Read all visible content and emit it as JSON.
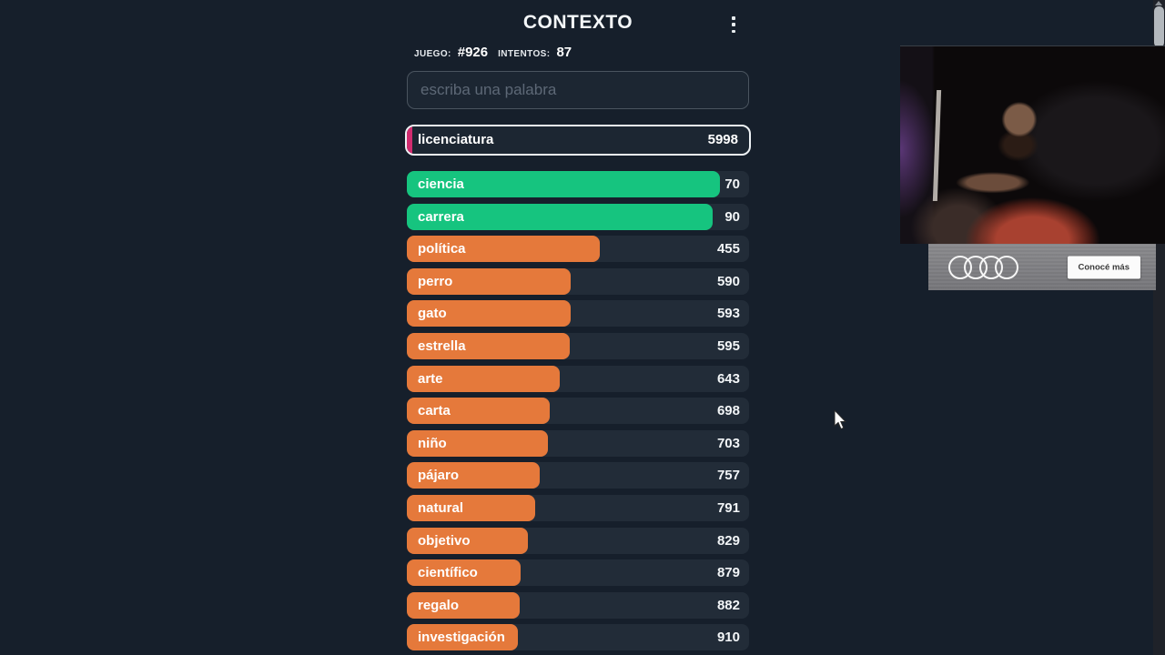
{
  "app": {
    "title": "CONTEXTO"
  },
  "header": {
    "game_label": "JUEGO:",
    "game_value": "#926",
    "attempts_label": "INTENTOS:",
    "attempts_value": "87"
  },
  "search": {
    "placeholder": "escriba una palabra",
    "value": ""
  },
  "colors": {
    "green": "#16c47f",
    "orange": "#e5793b",
    "pink": "#d12c6f",
    "track": "#222c38",
    "background": "#161f2b"
  },
  "current_guess": {
    "word": "licenciatura",
    "rank": "5998",
    "bar_percent": 1.5,
    "color": "pink"
  },
  "guesses": [
    {
      "word": "ciencia",
      "rank": "70",
      "bar_percent": 91.5,
      "color": "green"
    },
    {
      "word": "carrera",
      "rank": "90",
      "bar_percent": 89.4,
      "color": "green"
    },
    {
      "word": "política",
      "rank": "455",
      "bar_percent": 56.4,
      "color": "orange"
    },
    {
      "word": "perro",
      "rank": "590",
      "bar_percent": 47.9,
      "color": "orange"
    },
    {
      "word": "gato",
      "rank": "593",
      "bar_percent": 47.9,
      "color": "orange"
    },
    {
      "word": "estrella",
      "rank": "595",
      "bar_percent": 47.6,
      "color": "orange"
    },
    {
      "word": "arte",
      "rank": "643",
      "bar_percent": 44.7,
      "color": "orange"
    },
    {
      "word": "carta",
      "rank": "698",
      "bar_percent": 41.8,
      "color": "orange"
    },
    {
      "word": "niño",
      "rank": "703",
      "bar_percent": 41.2,
      "color": "orange"
    },
    {
      "word": "pájaro",
      "rank": "757",
      "bar_percent": 38.8,
      "color": "orange"
    },
    {
      "word": "natural",
      "rank": "791",
      "bar_percent": 37.5,
      "color": "orange"
    },
    {
      "word": "objetivo",
      "rank": "829",
      "bar_percent": 35.4,
      "color": "orange"
    },
    {
      "word": "científico",
      "rank": "879",
      "bar_percent": 33.2,
      "color": "orange"
    },
    {
      "word": "regalo",
      "rank": "882",
      "bar_percent": 33.0,
      "color": "orange"
    },
    {
      "word": "investigación",
      "rank": "910",
      "bar_percent": 32.4,
      "color": "orange"
    }
  ],
  "stream_overlay": {
    "ad": {
      "brand": "Audi",
      "cta_label": "Conocé más"
    }
  }
}
